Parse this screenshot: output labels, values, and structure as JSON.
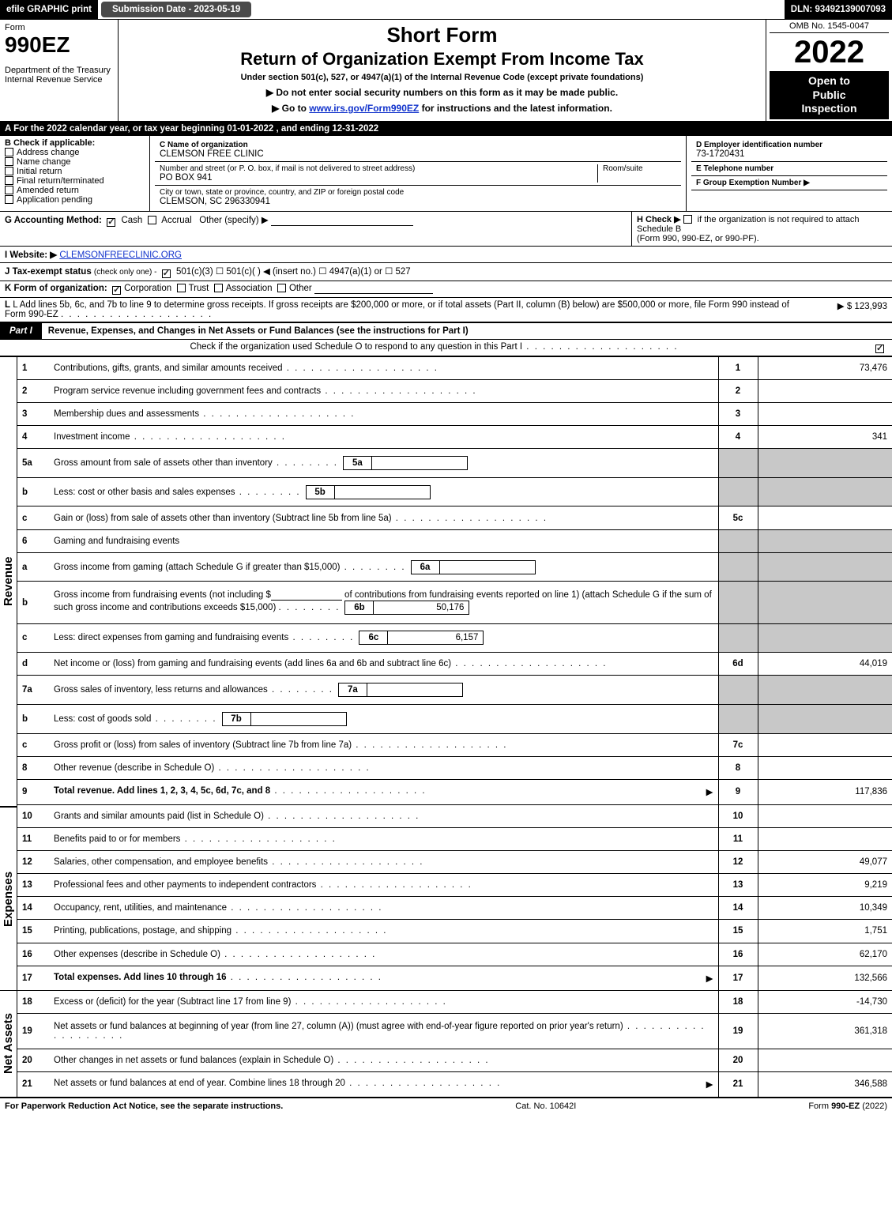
{
  "topbar": {
    "efile": "efile GRAPHIC print",
    "subdate": "Submission Date - 2023-05-19",
    "dln": "DLN: 93492139007093"
  },
  "header": {
    "form_word": "Form",
    "form_no": "990EZ",
    "dept1": "Department of the Treasury",
    "dept2": "Internal Revenue Service",
    "title1": "Short Form",
    "title2": "Return of Organization Exempt From Income Tax",
    "sub": "Under section 501(c), 527, or 4947(a)(1) of the Internal Revenue Code (except private foundations)",
    "note1": "▶ Do not enter social security numbers on this form as it may be made public.",
    "note2_prefix": "▶ Go to ",
    "note2_link": "www.irs.gov/Form990EZ",
    "note2_suffix": " for instructions and the latest information.",
    "omb": "OMB No. 1545-0047",
    "year": "2022",
    "open1": "Open to",
    "open2": "Public",
    "open3": "Inspection"
  },
  "A": "A  For the 2022 calendar year, or tax year beginning 01-01-2022 , and ending 12-31-2022",
  "B": {
    "title": "B  Check if applicable:",
    "items": [
      "Address change",
      "Name change",
      "Initial return",
      "Final return/terminated",
      "Amended return",
      "Application pending"
    ]
  },
  "C": {
    "name_label": "C Name of organization",
    "name": "CLEMSON FREE CLINIC",
    "street_label": "Number and street (or P. O. box, if mail is not delivered to street address)",
    "room_label": "Room/suite",
    "street": "PO BOX 941",
    "city_label": "City or town, state or province, country, and ZIP or foreign postal code",
    "city": "CLEMSON, SC  296330941"
  },
  "D": {
    "label": "D Employer identification number",
    "value": "73-1720431"
  },
  "E": {
    "label": "E Telephone number",
    "value": ""
  },
  "F": {
    "label": "F Group Exemption Number  ▶",
    "value": ""
  },
  "G": {
    "label": "G Accounting Method:",
    "options": [
      "Cash",
      "Accrual"
    ],
    "other": "Other (specify) ▶",
    "cash_checked": true
  },
  "H": {
    "text1": "H  Check ▶",
    "text2": "if the organization is not required to attach Schedule B",
    "text3": "(Form 990, 990-EZ, or 990-PF)."
  },
  "I": {
    "label": "I Website: ▶",
    "value": "CLEMSONFREECLINIC.ORG"
  },
  "J": {
    "label": "J Tax-exempt status",
    "note": "(check only one) -",
    "opts_text": "501(c)(3)  ☐ 501(c)(  ) ◀ (insert no.)  ☐ 4947(a)(1) or  ☐ 527",
    "checked": true
  },
  "K": {
    "label": "K Form of organization:",
    "corp_checked": true,
    "opts": [
      "Corporation",
      "Trust",
      "Association",
      "Other"
    ]
  },
  "L": {
    "text": "L Add lines 5b, 6c, and 7b to line 9 to determine gross receipts. If gross receipts are $200,000 or more, or if total assets (Part II, column (B) below) are $500,000 or more, file Form 990 instead of Form 990-EZ",
    "amount": "▶ $ 123,993"
  },
  "partI": {
    "tab": "Part I",
    "title": "Revenue, Expenses, and Changes in Net Assets or Fund Balances (see the instructions for Part I)",
    "check_text": "Check if the organization used Schedule O to respond to any question in this Part I",
    "check_checked": true
  },
  "sidelabels": {
    "revenue": "Revenue",
    "expenses": "Expenses",
    "netassets": "Net Assets"
  },
  "rows_revenue": [
    {
      "ln": "1",
      "desc": "Contributions, gifts, grants, and similar amounts received",
      "num": "1",
      "val": "73,476"
    },
    {
      "ln": "2",
      "desc": "Program service revenue including government fees and contracts",
      "num": "2",
      "val": ""
    },
    {
      "ln": "3",
      "desc": "Membership dues and assessments",
      "num": "3",
      "val": ""
    },
    {
      "ln": "4",
      "desc": "Investment income",
      "num": "4",
      "val": "341"
    }
  ],
  "rows_5": {
    "a": {
      "ln": "5a",
      "desc": "Gross amount from sale of assets other than inventory",
      "inline_k": "5a",
      "inline_v": ""
    },
    "b": {
      "ln": "b",
      "desc": "Less: cost or other basis and sales expenses",
      "inline_k": "5b",
      "inline_v": ""
    },
    "c": {
      "ln": "c",
      "desc": "Gain or (loss) from sale of assets other than inventory (Subtract line 5b from line 5a)",
      "num": "5c",
      "val": ""
    }
  },
  "rows_6": {
    "head": {
      "ln": "6",
      "desc": "Gaming and fundraising events"
    },
    "a": {
      "ln": "a",
      "desc": "Gross income from gaming (attach Schedule G if greater than $15,000)",
      "inline_k": "6a",
      "inline_v": ""
    },
    "b": {
      "ln": "b",
      "desc1": "Gross income from fundraising events (not including $",
      "desc_amt": "",
      "desc2": "of contributions from fundraising events reported on line 1) (attach Schedule G if the sum of such gross income and contributions exceeds $15,000)",
      "inline_k": "6b",
      "inline_v": "50,176"
    },
    "c": {
      "ln": "c",
      "desc": "Less: direct expenses from gaming and fundraising events",
      "inline_k": "6c",
      "inline_v": "6,157"
    },
    "d": {
      "ln": "d",
      "desc": "Net income or (loss) from gaming and fundraising events (add lines 6a and 6b and subtract line 6c)",
      "num": "6d",
      "val": "44,019"
    }
  },
  "rows_7": {
    "a": {
      "ln": "7a",
      "desc": "Gross sales of inventory, less returns and allowances",
      "inline_k": "7a",
      "inline_v": ""
    },
    "b": {
      "ln": "b",
      "desc": "Less: cost of goods sold",
      "inline_k": "7b",
      "inline_v": ""
    },
    "c": {
      "ln": "c",
      "desc": "Gross profit or (loss) from sales of inventory (Subtract line 7b from line 7a)",
      "num": "7c",
      "val": ""
    }
  },
  "rows_8_9": [
    {
      "ln": "8",
      "desc": "Other revenue (describe in Schedule O)",
      "num": "8",
      "val": ""
    },
    {
      "ln": "9",
      "desc": "Total revenue. Add lines 1, 2, 3, 4, 5c, 6d, 7c, and 8",
      "num": "9",
      "val": "117,836",
      "bold": true,
      "ptr": true
    }
  ],
  "rows_expenses": [
    {
      "ln": "10",
      "desc": "Grants and similar amounts paid (list in Schedule O)",
      "num": "10",
      "val": ""
    },
    {
      "ln": "11",
      "desc": "Benefits paid to or for members",
      "num": "11",
      "val": ""
    },
    {
      "ln": "12",
      "desc": "Salaries, other compensation, and employee benefits",
      "num": "12",
      "val": "49,077"
    },
    {
      "ln": "13",
      "desc": "Professional fees and other payments to independent contractors",
      "num": "13",
      "val": "9,219"
    },
    {
      "ln": "14",
      "desc": "Occupancy, rent, utilities, and maintenance",
      "num": "14",
      "val": "10,349"
    },
    {
      "ln": "15",
      "desc": "Printing, publications, postage, and shipping",
      "num": "15",
      "val": "1,751"
    },
    {
      "ln": "16",
      "desc": "Other expenses (describe in Schedule O)",
      "num": "16",
      "val": "62,170"
    },
    {
      "ln": "17",
      "desc": "Total expenses. Add lines 10 through 16",
      "num": "17",
      "val": "132,566",
      "bold": true,
      "ptr": true
    }
  ],
  "rows_net": [
    {
      "ln": "18",
      "desc": "Excess or (deficit) for the year (Subtract line 17 from line 9)",
      "num": "18",
      "val": "-14,730"
    },
    {
      "ln": "19",
      "desc": "Net assets or fund balances at beginning of year (from line 27, column (A)) (must agree with end-of-year figure reported on prior year's return)",
      "num": "19",
      "val": "361,318"
    },
    {
      "ln": "20",
      "desc": "Other changes in net assets or fund balances (explain in Schedule O)",
      "num": "20",
      "val": ""
    },
    {
      "ln": "21",
      "desc": "Net assets or fund balances at end of year. Combine lines 18 through 20",
      "num": "21",
      "val": "346,588",
      "ptr": true
    }
  ],
  "footer": {
    "left": "For Paperwork Reduction Act Notice, see the separate instructions.",
    "center": "Cat. No. 10642I",
    "right": "Form 990-EZ (2022)"
  },
  "colors": {
    "black": "#000000",
    "grey_shade": "#c8c8c8",
    "link": "#1133cc",
    "dark_grey": "#4a4a4a"
  }
}
